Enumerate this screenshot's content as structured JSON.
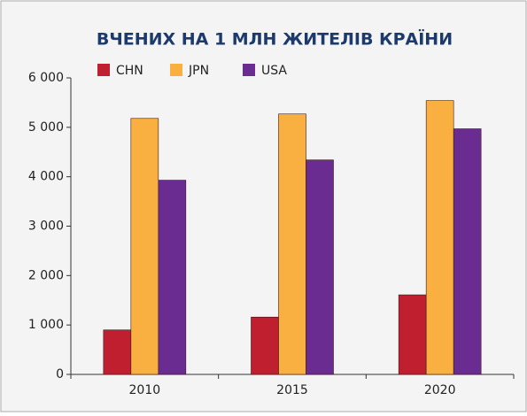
{
  "chart_data": {
    "type": "bar",
    "title": "ВЧЕНИХ НА 1 МЛН ЖИТЕЛІВ КРАЇНИ",
    "categories": [
      "2010",
      "2015",
      "2020"
    ],
    "series": [
      {
        "name": "CHN",
        "color": "#c01f2f",
        "values": [
          900,
          1160,
          1610
        ]
      },
      {
        "name": "JPN",
        "color": "#f9b040",
        "values": [
          5180,
          5270,
          5540
        ]
      },
      {
        "name": "USA",
        "color": "#6a2c91",
        "values": [
          3930,
          4340,
          4970
        ]
      }
    ],
    "ylim": [
      0,
      6000
    ],
    "yticks": [
      0,
      {
        "value": 1000,
        "label": "1 000"
      },
      {
        "value": 2000,
        "label": "2 000"
      },
      {
        "value": 3000,
        "label": "3 000"
      },
      {
        "value": 4000,
        "label": "4 000"
      },
      {
        "value": 5000,
        "label": "5 000"
      },
      {
        "value": 6000,
        "label": "6 000"
      }
    ],
    "grid": false,
    "legend": "top"
  }
}
